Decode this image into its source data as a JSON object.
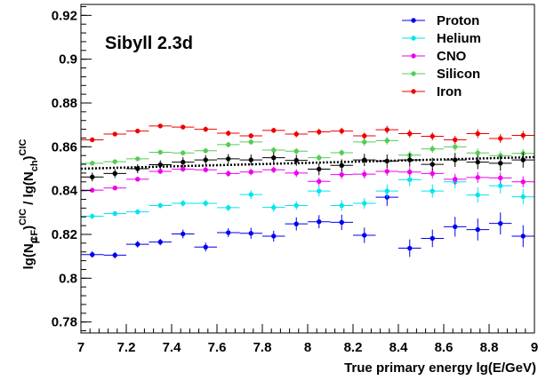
{
  "chart_data": {
    "type": "scatter",
    "annotation": "Sibyll 2.3d",
    "xlabel": "True primary energy lg(E/GeV)",
    "ylabel_parts": {
      "lg1": "lg(N",
      "mu": "μ",
      "cf": "CF",
      "close1": ")",
      "cic1": "CIC",
      "slash": " / lg(N",
      "ch": "ch",
      "close2": ")",
      "cic2": "CIC"
    },
    "xlim": [
      7,
      9
    ],
    "ylim": [
      0.775,
      0.925
    ],
    "x_ticks": [
      7,
      7.2,
      7.4,
      7.6,
      7.8,
      8,
      8.2,
      8.4,
      8.6,
      8.8,
      9
    ],
    "x_tick_labels": [
      "7",
      "7.2",
      "7.4",
      "7.6",
      "7.8",
      "8",
      "8.2",
      "8.4",
      "8.6",
      "8.8",
      "9"
    ],
    "y_ticks": [
      0.78,
      0.8,
      0.82,
      0.84,
      0.86,
      0.88,
      0.9,
      0.92
    ],
    "y_tick_labels": [
      "0.78",
      "0.8",
      "0.82",
      "0.84",
      "0.86",
      "0.88",
      "0.9",
      "0.92"
    ],
    "x": [
      7.05,
      7.15,
      7.25,
      7.35,
      7.45,
      7.55,
      7.65,
      7.75,
      7.85,
      7.95,
      8.05,
      8.15,
      8.25,
      8.35,
      8.45,
      8.55,
      8.65,
      8.75,
      8.85,
      8.95
    ],
    "series": [
      {
        "name": "Proton",
        "color": "#0000ee",
        "values": [
          0.8108,
          0.8105,
          0.8155,
          0.8165,
          0.8202,
          0.8142,
          0.8208,
          0.8205,
          0.8192,
          0.8248,
          0.8258,
          0.8255,
          0.8196,
          0.837,
          0.8137,
          0.8182,
          0.8235,
          0.8222,
          0.825,
          0.8192
        ],
        "errors": [
          0.0015,
          0.0015,
          0.0015,
          0.0015,
          0.002,
          0.002,
          0.002,
          0.0025,
          0.0025,
          0.003,
          0.003,
          0.0035,
          0.0035,
          0.004,
          0.004,
          0.004,
          0.0045,
          0.005,
          0.005,
          0.005
        ]
      },
      {
        "name": "Helium",
        "color": "#00e5ee",
        "values": [
          0.8283,
          0.8295,
          0.8303,
          0.8332,
          0.8342,
          0.8342,
          0.8322,
          0.8382,
          0.8323,
          0.8332,
          0.8398,
          0.8332,
          0.8342,
          0.8398,
          0.845,
          0.8398,
          0.844,
          0.838,
          0.8422,
          0.8372
        ],
        "errors": [
          0.0012,
          0.0012,
          0.0012,
          0.0012,
          0.0015,
          0.0015,
          0.0015,
          0.002,
          0.002,
          0.002,
          0.0025,
          0.0025,
          0.0025,
          0.003,
          0.003,
          0.003,
          0.003,
          0.0035,
          0.0035,
          0.0035
        ]
      },
      {
        "name": "CNO",
        "color": "#ee00ee",
        "values": [
          0.8402,
          0.8412,
          0.8452,
          0.8488,
          0.8498,
          0.8495,
          0.8478,
          0.8485,
          0.8495,
          0.848,
          0.8442,
          0.8473,
          0.8475,
          0.8488,
          0.8485,
          0.8478,
          0.8452,
          0.846,
          0.8458,
          0.844
        ],
        "errors": [
          0.001,
          0.001,
          0.001,
          0.0012,
          0.0012,
          0.0012,
          0.0015,
          0.0015,
          0.0015,
          0.0018,
          0.0018,
          0.002,
          0.002,
          0.002,
          0.0022,
          0.0022,
          0.0025,
          0.0025,
          0.0025,
          0.0025
        ]
      },
      {
        "name": "Silicon",
        "color": "#55cc55",
        "values": [
          0.8525,
          0.8532,
          0.8545,
          0.8575,
          0.8572,
          0.8582,
          0.861,
          0.8622,
          0.8585,
          0.858,
          0.855,
          0.8573,
          0.8622,
          0.8628,
          0.8562,
          0.859,
          0.86,
          0.8572,
          0.856,
          0.857
        ],
        "errors": [
          0.001,
          0.001,
          0.001,
          0.001,
          0.0012,
          0.0012,
          0.0012,
          0.0012,
          0.0015,
          0.0015,
          0.0015,
          0.0015,
          0.0018,
          0.0018,
          0.0018,
          0.0018,
          0.002,
          0.002,
          0.002,
          0.002
        ]
      },
      {
        "name": "Iron",
        "color": "#ee0000",
        "values": [
          0.8632,
          0.8658,
          0.8672,
          0.8695,
          0.869,
          0.868,
          0.8662,
          0.865,
          0.8675,
          0.8658,
          0.8668,
          0.8672,
          0.865,
          0.8678,
          0.866,
          0.8648,
          0.8632,
          0.866,
          0.8638,
          0.8652
        ],
        "errors": [
          0.001,
          0.001,
          0.001,
          0.001,
          0.001,
          0.0012,
          0.0012,
          0.0012,
          0.0012,
          0.0015,
          0.0015,
          0.0015,
          0.0015,
          0.0018,
          0.0018,
          0.0018,
          0.0018,
          0.002,
          0.002,
          0.002
        ]
      },
      {
        "name": "",
        "color": "#000000",
        "values": [
          0.8462,
          0.8478,
          0.85,
          0.8518,
          0.853,
          0.854,
          0.8545,
          0.854,
          0.855,
          0.8538,
          0.8498,
          0.8515,
          0.854,
          0.8535,
          0.854,
          0.852,
          0.854,
          0.853,
          0.8525,
          0.854
        ],
        "errors": [
          0.002,
          0.002,
          0.002,
          0.002,
          0.0022,
          0.0022,
          0.0022,
          0.0025,
          0.0025,
          0.0025,
          0.0028,
          0.0028,
          0.0028,
          0.003,
          0.003,
          0.003,
          0.0032,
          0.0032,
          0.0035,
          0.0035
        ]
      }
    ],
    "fit_line": {
      "x": [
        7,
        9
      ],
      "y": [
        0.85,
        0.8553
      ],
      "color": "#000000",
      "style": "dotted"
    },
    "legend_position": "top-right"
  }
}
